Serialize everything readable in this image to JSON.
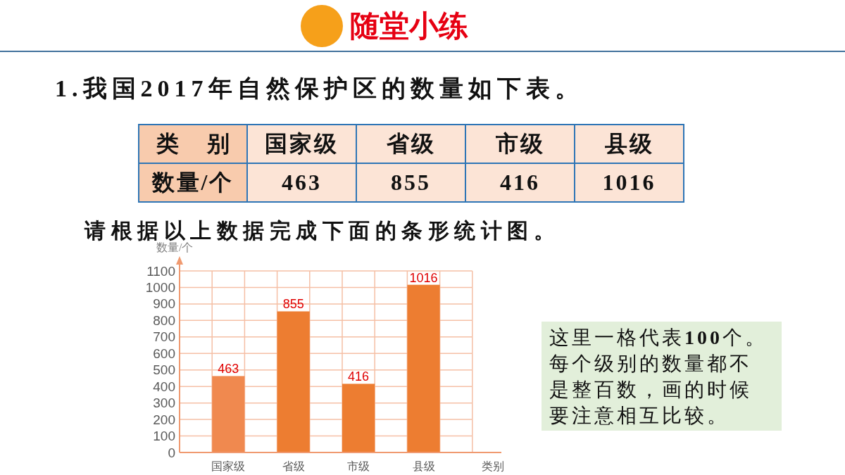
{
  "chart_data": [
    {
      "type": "other",
      "title": "随堂小练",
      "subtitle": "1.我国2017年自然保护区的数量如下表。",
      "annotations": [
        "类别",
        "国家级",
        "省级",
        "市级",
        "县级",
        "数量/个",
        "463",
        "855",
        "416",
        "1016"
      ]
    },
    {
      "type": "bar",
      "xlabel": "类别",
      "ylabel": "数量/个",
      "annotations": [
        "请根据以上数据完成下面的条形统计图。",
        "这里一格代表**100**个。每个级别的数量都不是整百数，画的时候要注意相互比较。"
      ],
      "categories": [
        "国家级",
        "省级",
        "市级",
        "县级"
      ],
      "values": [
        463,
        855,
        416,
        1016
      ],
      "colors": [
        "#f0894f",
        "#ed7d31",
        "#ed7d31",
        "#ed7d31"
      ],
      "ylim": [
        0,
        1100
      ],
      "yticks": [
        0,
        100,
        200,
        300,
        400,
        500,
        600,
        700,
        800,
        900,
        1000,
        1100
      ],
      "grid": true,
      "data_labels": true
    }
  ]
}
